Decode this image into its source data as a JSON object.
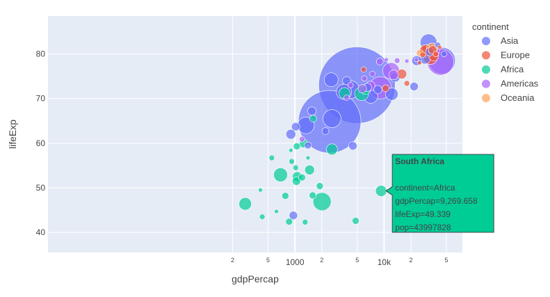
{
  "chart_data": {
    "type": "scatter",
    "subtype": "bubble",
    "xlabel": "gdpPercap",
    "ylabel": "lifeExp",
    "x_scale": "log",
    "xlim": [
      1.7,
      75500.0
    ],
    "ylim": [
      35.5,
      88.5
    ],
    "x_ticks_major": [
      {
        "value": 1000,
        "label": "1000"
      },
      {
        "value": 10000,
        "label": "10k"
      }
    ],
    "x_ticks_minor": [
      {
        "value": 200,
        "label": "2"
      },
      {
        "value": 500,
        "label": "5"
      },
      {
        "value": 2000,
        "label": "2"
      },
      {
        "value": 5000,
        "label": "5"
      },
      {
        "value": 20000,
        "label": "2"
      },
      {
        "value": 50000,
        "label": "5"
      }
    ],
    "y_ticks": [
      40,
      50,
      60,
      70,
      80
    ],
    "grid": true,
    "legend": {
      "title": "continent",
      "placement": "right",
      "entries": [
        {
          "name": "Asia",
          "color": "#636efa"
        },
        {
          "name": "Europe",
          "color": "#ef553b"
        },
        {
          "name": "Africa",
          "color": "#00cc96"
        },
        {
          "name": "Americas",
          "color": "#ab63fa"
        },
        {
          "name": "Oceania",
          "color": "#ffa15a"
        }
      ]
    },
    "series": [
      {
        "name": "Asia",
        "color": "#636efa",
        "points": [
          {
            "x": 2450,
            "y": 64.8,
            "size": 90
          },
          {
            "x": 4960,
            "y": 73.0,
            "size": 110
          },
          {
            "x": 2600,
            "y": 65.5,
            "size": 26
          },
          {
            "x": 1330,
            "y": 64.0,
            "size": 24
          },
          {
            "x": 2550,
            "y": 74.2,
            "size": 20
          },
          {
            "x": 3550,
            "y": 71.5,
            "size": 22
          },
          {
            "x": 31500,
            "y": 82.6,
            "size": 24
          },
          {
            "x": 44700,
            "y": 78.5,
            "size": 38
          },
          {
            "x": 1020,
            "y": 63.7,
            "size": 12
          },
          {
            "x": 900,
            "y": 62.0,
            "size": 14
          },
          {
            "x": 4180,
            "y": 72.0,
            "size": 26
          },
          {
            "x": 7090,
            "y": 70.5,
            "size": 20
          },
          {
            "x": 12200,
            "y": 71.0,
            "size": 18
          },
          {
            "x": 13300,
            "y": 74.8,
            "size": 14
          },
          {
            "x": 23200,
            "y": 78.5,
            "size": 14
          },
          {
            "x": 28600,
            "y": 79.0,
            "size": 16
          },
          {
            "x": 21700,
            "y": 72.7,
            "size": 12
          },
          {
            "x": 1400,
            "y": 59.5,
            "size": 10
          },
          {
            "x": 4470,
            "y": 59.4,
            "size": 12
          },
          {
            "x": 2200,
            "y": 62.7,
            "size": 10
          },
          {
            "x": 1550,
            "y": 67.2,
            "size": 12
          },
          {
            "x": 6500,
            "y": 72.5,
            "size": 12
          },
          {
            "x": 8500,
            "y": 72.0,
            "size": 12
          },
          {
            "x": 3800,
            "y": 74.0,
            "size": 12
          },
          {
            "x": 32500,
            "y": 80.5,
            "size": 12
          },
          {
            "x": 40000,
            "y": 82.0,
            "size": 8
          },
          {
            "x": 47000,
            "y": 80.0,
            "size": 8
          },
          {
            "x": 960,
            "y": 43.8,
            "size": 12
          }
        ]
      },
      {
        "name": "Europe",
        "color": "#ef553b",
        "points": [
          {
            "x": 30000,
            "y": 80.6,
            "size": 18
          },
          {
            "x": 33000,
            "y": 79.2,
            "size": 20
          },
          {
            "x": 29000,
            "y": 80.8,
            "size": 16
          },
          {
            "x": 35000,
            "y": 80.9,
            "size": 12
          },
          {
            "x": 36000,
            "y": 79.5,
            "size": 14
          },
          {
            "x": 15800,
            "y": 75.5,
            "size": 14
          },
          {
            "x": 10400,
            "y": 72.3,
            "size": 10
          },
          {
            "x": 18000,
            "y": 73.4,
            "size": 8
          },
          {
            "x": 27000,
            "y": 79.8,
            "size": 8
          },
          {
            "x": 5900,
            "y": 76.5,
            "size": 8
          },
          {
            "x": 25000,
            "y": 78.0,
            "size": 6
          },
          {
            "x": 38000,
            "y": 80.0,
            "size": 8
          },
          {
            "x": 42000,
            "y": 81.5,
            "size": 6
          }
        ]
      },
      {
        "name": "Africa",
        "color": "#00cc96",
        "points": [
          {
            "x": 9270,
            "y": 49.3,
            "size": 16
          },
          {
            "x": 277,
            "y": 46.4,
            "size": 18
          },
          {
            "x": 2015,
            "y": 46.9,
            "size": 26
          },
          {
            "x": 690,
            "y": 52.9,
            "size": 20
          },
          {
            "x": 2600,
            "y": 58.6,
            "size": 16
          },
          {
            "x": 1060,
            "y": 52.5,
            "size": 14
          },
          {
            "x": 1040,
            "y": 51.5,
            "size": 12
          },
          {
            "x": 1460,
            "y": 54.0,
            "size": 14
          },
          {
            "x": 3600,
            "y": 71.2,
            "size": 16
          },
          {
            "x": 5600,
            "y": 71.1,
            "size": 20
          },
          {
            "x": 6200,
            "y": 72.0,
            "size": 14
          },
          {
            "x": 1900,
            "y": 50.4,
            "size": 10
          },
          {
            "x": 1250,
            "y": 59.9,
            "size": 12
          },
          {
            "x": 1580,
            "y": 48.3,
            "size": 10
          },
          {
            "x": 780,
            "y": 48.2,
            "size": 10
          },
          {
            "x": 860,
            "y": 42.4,
            "size": 10
          },
          {
            "x": 1600,
            "y": 65.5,
            "size": 10
          },
          {
            "x": 4800,
            "y": 42.6,
            "size": 10
          },
          {
            "x": 1050,
            "y": 59.3,
            "size": 10
          },
          {
            "x": 550,
            "y": 56.7,
            "size": 8
          },
          {
            "x": 920,
            "y": 55.9,
            "size": 8
          },
          {
            "x": 430,
            "y": 43.5,
            "size": 8
          },
          {
            "x": 1200,
            "y": 52.3,
            "size": 10
          },
          {
            "x": 620,
            "y": 44.7,
            "size": 6
          },
          {
            "x": 1020,
            "y": 54.5,
            "size": 8
          },
          {
            "x": 1300,
            "y": 42.3,
            "size": 8
          },
          {
            "x": 410,
            "y": 49.5,
            "size": 6
          },
          {
            "x": 900,
            "y": 58.4,
            "size": 6
          },
          {
            "x": 1400,
            "y": 56.7,
            "size": 6
          }
        ]
      },
      {
        "name": "Americas",
        "color": "#ab63fa",
        "points": [
          {
            "x": 42950,
            "y": 78.2,
            "size": 38
          },
          {
            "x": 9060,
            "y": 72.4,
            "size": 32
          },
          {
            "x": 11980,
            "y": 76.2,
            "size": 24
          },
          {
            "x": 7010,
            "y": 72.8,
            "size": 14
          },
          {
            "x": 8950,
            "y": 78.3,
            "size": 10
          },
          {
            "x": 12800,
            "y": 75.3,
            "size": 14
          },
          {
            "x": 36300,
            "y": 80.7,
            "size": 16
          },
          {
            "x": 5700,
            "y": 72.2,
            "size": 12
          },
          {
            "x": 3800,
            "y": 70.2,
            "size": 8
          },
          {
            "x": 4200,
            "y": 73.0,
            "size": 8
          },
          {
            "x": 6000,
            "y": 74.5,
            "size": 8
          },
          {
            "x": 1200,
            "y": 60.9,
            "size": 8
          },
          {
            "x": 7400,
            "y": 75.5,
            "size": 8
          },
          {
            "x": 14000,
            "y": 78.5,
            "size": 8
          },
          {
            "x": 10600,
            "y": 78.7,
            "size": 6
          },
          {
            "x": 18000,
            "y": 78.4,
            "size": 6
          },
          {
            "x": 23000,
            "y": 78.7,
            "size": 6
          }
        ]
      },
      {
        "name": "Oceania",
        "color": "#ffa15a",
        "points": [
          {
            "x": 34400,
            "y": 81.2,
            "size": 16
          },
          {
            "x": 25200,
            "y": 80.2,
            "size": 10
          }
        ]
      }
    ],
    "hover": {
      "title": "South Africa",
      "lines": [
        "continent=Africa",
        "gdpPercap=9,269.658",
        "lifeExp=49.339",
        "pop=43997828"
      ],
      "color": "#00cc96"
    }
  }
}
